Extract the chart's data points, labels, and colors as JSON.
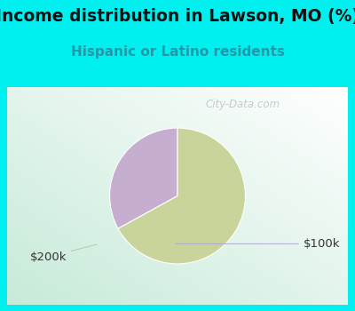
{
  "title": "Income distribution in Lawson, MO (%)",
  "subtitle": "Hispanic or Latino residents",
  "slices": [
    {
      "label": "$100k",
      "value": 33.0,
      "color": "#c5aed0"
    },
    {
      "label": "$200k",
      "value": 67.0,
      "color": "#c8d49a"
    }
  ],
  "startangle": 90,
  "background_color": "#00efef",
  "title_color": "#111111",
  "subtitle_color": "#2299aa",
  "label_100k_color": "#333333",
  "label_200k_color": "#333333",
  "watermark": "City-Data.com",
  "title_fontsize": 13.5,
  "subtitle_fontsize": 11,
  "label_fontsize": 9.5
}
